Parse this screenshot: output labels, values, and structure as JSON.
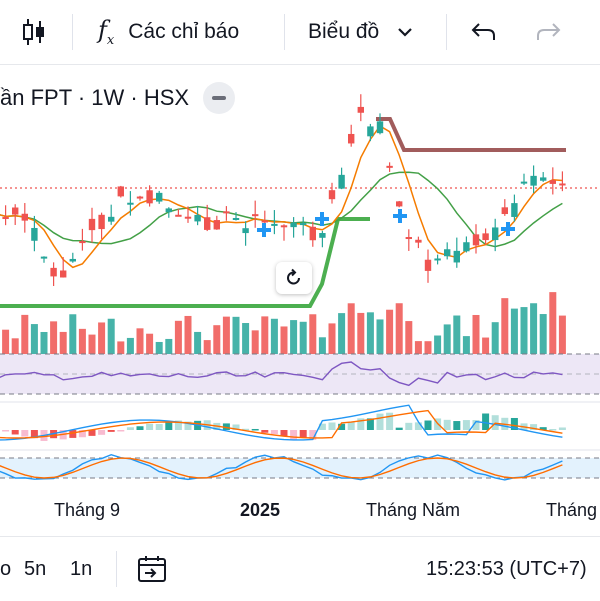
{
  "toolbar": {
    "indicators_label": "Các chỉ báo",
    "chart_type_label": "Biểu đồ",
    "icons": [
      "candles-icon",
      "fx-icon",
      "chevron-down-icon",
      "undo-icon",
      "redo-icon"
    ]
  },
  "legend": {
    "symbol_text": "ần FPT · 1W · HSX"
  },
  "xaxis": {
    "labels": [
      "Tháng 9",
      "2025",
      "Tháng Năm",
      "Tháng"
    ]
  },
  "bottom": {
    "range_1": "5n",
    "range_2": "1n",
    "range_partial": "o",
    "time": "15:23:53 (UTC+7)",
    "icons": [
      "calendar-goto-icon"
    ]
  },
  "colors": {
    "up": "#26a69a",
    "down": "#ef5350",
    "ma_orange": "#f57c00",
    "ma_green": "#43a047",
    "stop_green": "#4caf50",
    "stop_brown": "#a15c5c",
    "rsi_line": "#7e57c2",
    "rsi_band": "#ede7f6",
    "macd_blue": "#2196f3",
    "macd_orange": "#ff6d00",
    "stoch_band": "#e3f2fd",
    "price_line": "#ef5350"
  }
}
